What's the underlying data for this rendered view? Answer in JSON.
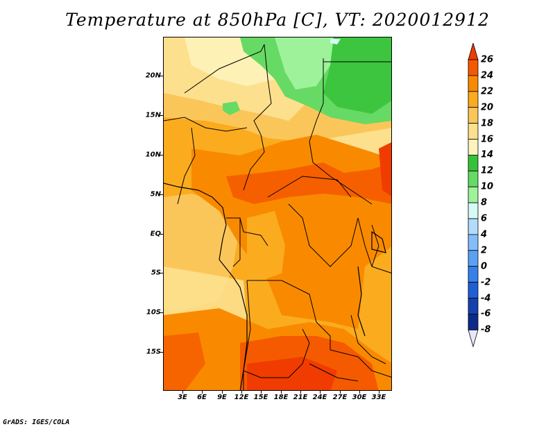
{
  "title": "Temperature at 850hPa [C], VT: 2020012912",
  "map": {
    "region": "Central Africa",
    "lat_labels": [
      "20N",
      "15N",
      "10N",
      "5N",
      "EQ",
      "5S",
      "10S",
      "15S"
    ],
    "lon_labels": [
      "3E",
      "6E",
      "9E",
      "12E",
      "15E",
      "18E",
      "21E",
      "24E",
      "27E",
      "30E",
      "33E"
    ]
  },
  "colorbar": {
    "labels": [
      "26",
      "24",
      "22",
      "20",
      "18",
      "16",
      "14",
      "12",
      "10",
      "8",
      "6",
      "4",
      "2",
      "0",
      "-2",
      "-4",
      "-6",
      "-8"
    ],
    "colors": [
      "#f03c00",
      "#f55a00",
      "#f98a00",
      "#fbab1e",
      "#fbc659",
      "#fde08e",
      "#fef3bd",
      "#36c13a",
      "#66da64",
      "#9ef29a",
      "#d6fbf5",
      "#b2dcfc",
      "#83befa",
      "#5aa1f3",
      "#3680ea",
      "#1f5fd6",
      "#1440b0",
      "#0c2a8a",
      "#070f56"
    ]
  },
  "footer": "GrADS: IGES/COLA"
}
